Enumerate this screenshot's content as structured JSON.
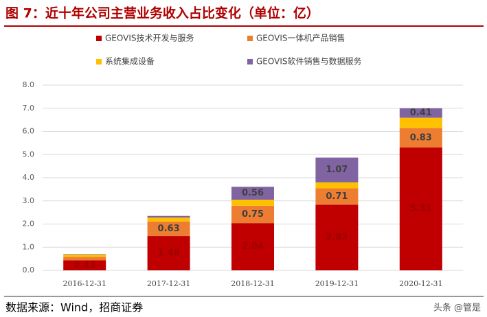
{
  "chart_data": {
    "type": "stacked-bar",
    "title": "图 7：近十年公司主营业务收入占比变化（单位：亿）",
    "source": "数据来源：Wind，招商证券",
    "watermark": "头条 @管是",
    "categories": [
      "2016-12-31",
      "2017-12-31",
      "2018-12-31",
      "2019-12-31",
      "2020-12-31"
    ],
    "series": [
      {
        "name": "GEOVIS技术开发与服务",
        "color": "#c00000",
        "values": [
          0.43,
          1.48,
          2.04,
          2.83,
          5.31
        ],
        "value_labels": [
          "0.43",
          "1.48",
          "2.04",
          "2.83",
          "5.31"
        ]
      },
      {
        "name": "GEOVIS一体机产品销售",
        "color": "#ed7d31",
        "values": [
          0.15,
          0.63,
          0.75,
          0.71,
          0.83
        ],
        "value_labels": [
          null,
          "0.63",
          "0.75",
          "0.71",
          "0.83"
        ]
      },
      {
        "name": "系统集成设备",
        "color": "#ffc000",
        "values": [
          0.1,
          0.17,
          0.26,
          0.26,
          0.45
        ]
      },
      {
        "name": "GEOVIS软件销售与数据服务",
        "color": "#8064a2",
        "values": [
          0.02,
          0.07,
          0.56,
          1.07,
          0.41
        ],
        "value_labels": [
          null,
          null,
          "0.56",
          "1.07",
          "0.41"
        ]
      }
    ],
    "ylim": [
      0,
      8
    ],
    "yticks": [
      {
        "value": 0,
        "label": "0.0"
      },
      {
        "value": 1,
        "label": "1.0"
      },
      {
        "value": 2,
        "label": "2.0"
      },
      {
        "value": 3,
        "label": "3.0"
      },
      {
        "value": 4,
        "label": "4.0"
      },
      {
        "value": 5,
        "label": "5.0"
      },
      {
        "value": 6,
        "label": "6.0"
      },
      {
        "value": 7,
        "label": "7.0"
      },
      {
        "value": 8,
        "label": "8.0"
      }
    ],
    "grid": true
  }
}
